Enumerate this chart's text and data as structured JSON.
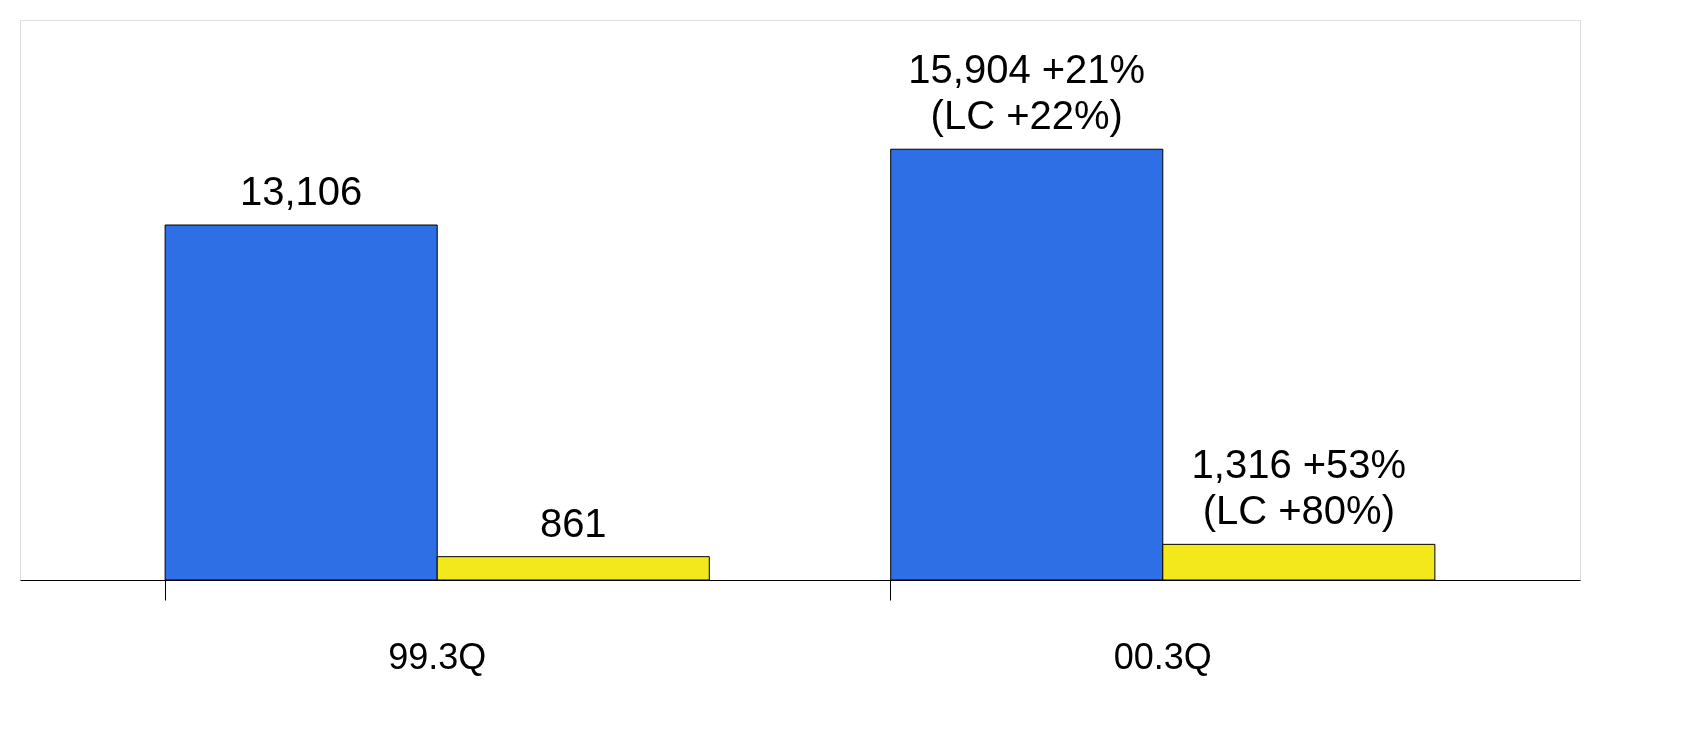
{
  "chart_data": {
    "type": "bar",
    "categories": [
      "99.3Q",
      "00.3Q"
    ],
    "series": [
      {
        "color": "#2f6fe6",
        "values": [
          13106,
          15904
        ],
        "value_labels": [
          "13,106",
          "15,904 +21%\n(LC +22%)"
        ]
      },
      {
        "color": "#f2e81c",
        "values": [
          861,
          1316
        ],
        "value_labels": [
          "861",
          "1,316 +53%\n(LC +80%)"
        ]
      }
    ],
    "tick_labels": "x",
    "grid": false,
    "legend": false
  }
}
